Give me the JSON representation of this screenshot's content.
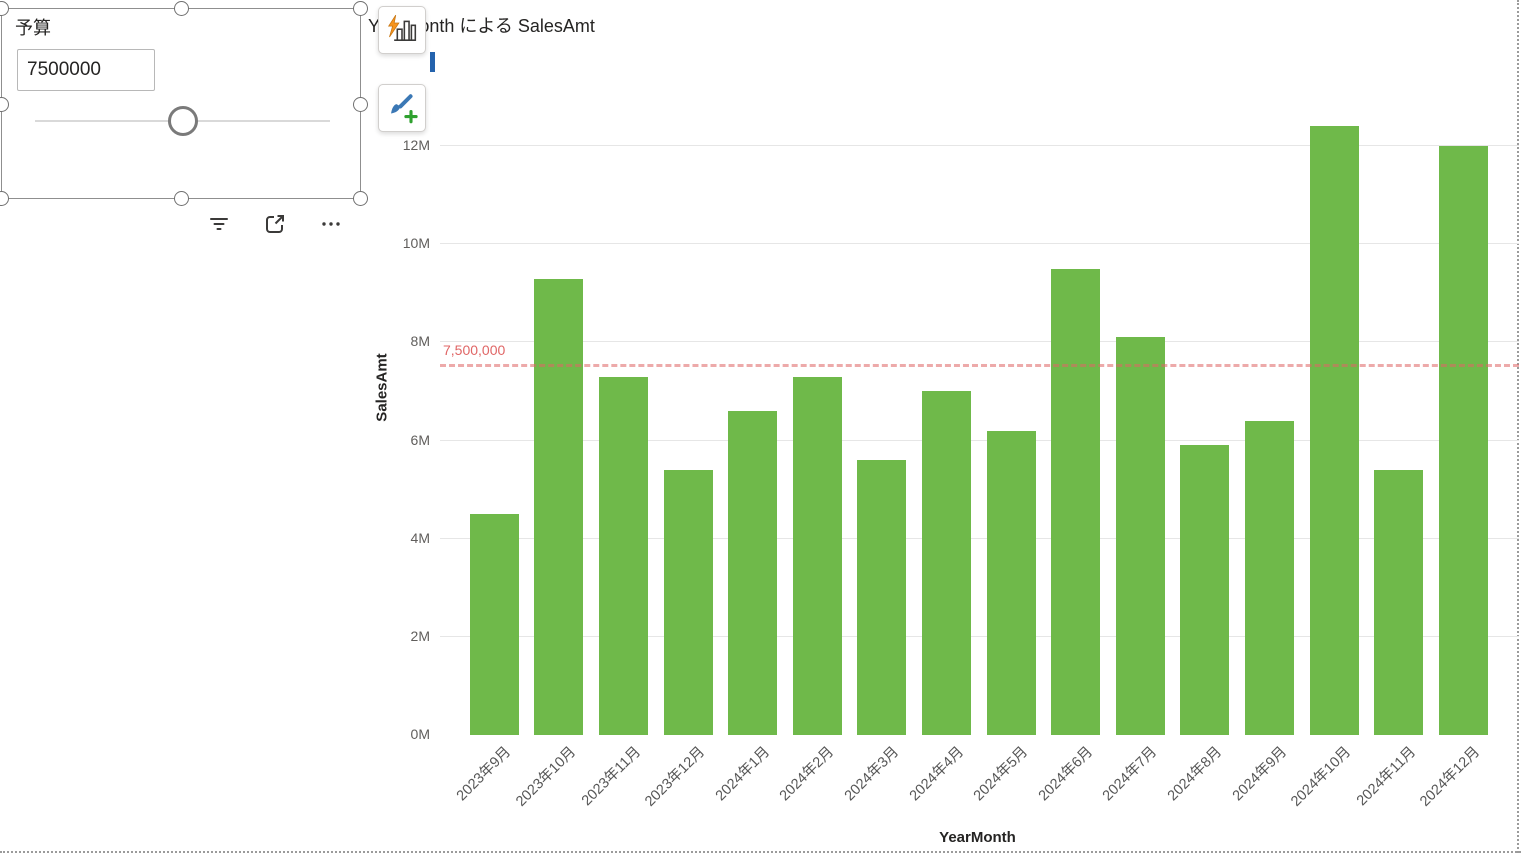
{
  "slicer": {
    "title": "予算",
    "input_value": "7500000"
  },
  "visual_toolbar": {
    "icons": [
      "filter-icon",
      "focus-mode-icon",
      "more-options-icon"
    ]
  },
  "floating_buttons": {
    "analyze": "analyze-visual-icon",
    "format": "format-visual-icon"
  },
  "chart": {
    "title": "YearMonth による SalesAmt",
    "x_axis_title": "YearMonth",
    "y_axis_title": "SalesAmt",
    "ref_line_label": "7,500,000"
  },
  "chart_data": {
    "type": "bar",
    "title": "YearMonth による SalesAmt",
    "xlabel": "YearMonth",
    "ylabel": "SalesAmt",
    "unit": "millions",
    "categories": [
      "2023年9月",
      "2023年10月",
      "2023年11月",
      "2023年12月",
      "2024年1月",
      "2024年2月",
      "2024年3月",
      "2024年4月",
      "2024年5月",
      "2024年6月",
      "2024年7月",
      "2024年8月",
      "2024年9月",
      "2024年10月",
      "2024年11月",
      "2024年12月"
    ],
    "values": [
      4.5,
      9.3,
      7.3,
      5.4,
      6.6,
      7.3,
      5.6,
      7.0,
      6.2,
      9.5,
      8.1,
      5.9,
      6.4,
      12.4,
      5.4,
      12.0
    ],
    "ylim": [
      0,
      13
    ],
    "y_ticks": [
      {
        "value": 0,
        "label": "0M"
      },
      {
        "value": 2,
        "label": "2M"
      },
      {
        "value": 4,
        "label": "4M"
      },
      {
        "value": 6,
        "label": "6M"
      },
      {
        "value": 8,
        "label": "8M"
      },
      {
        "value": 10,
        "label": "10M"
      },
      {
        "value": 12,
        "label": "12M"
      }
    ],
    "reference_line": {
      "value": 7.5,
      "label": "7,500,000",
      "color": "#e06666"
    },
    "bar_color": "#6fb94a",
    "grid": true,
    "legend": "none"
  }
}
